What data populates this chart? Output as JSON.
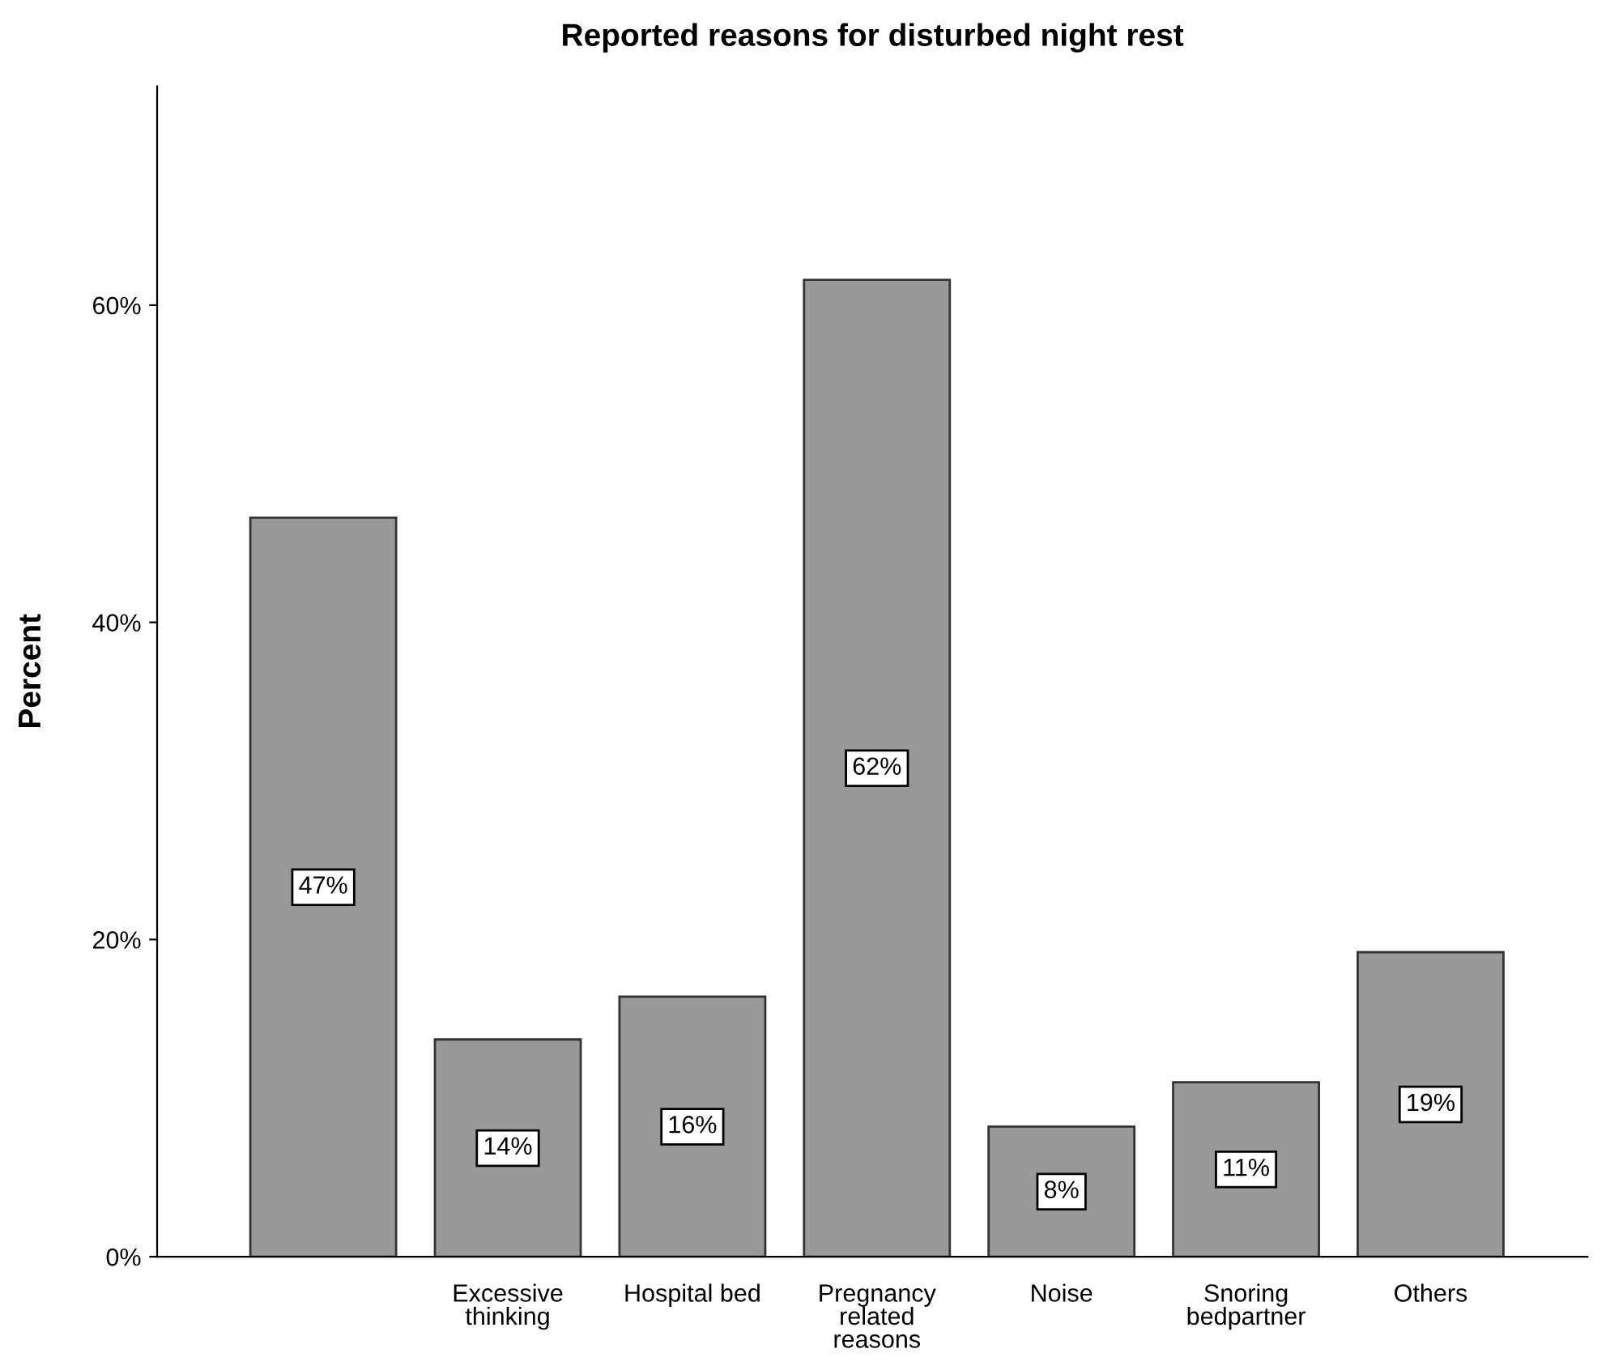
{
  "chart_data": {
    "type": "bar",
    "title": "Reported reasons for disturbed night rest",
    "ylabel": "Percent",
    "categories": [
      null,
      "Excessive\nthinking",
      "Hospital bed",
      "Pregnancy\nrelated\nreasons",
      "Noise",
      "Snoring\nbedpartner",
      "Others"
    ],
    "values": [
      46.6,
      13.7,
      16.4,
      61.6,
      8.2,
      11.0,
      19.2
    ],
    "value_labels": [
      "47%",
      "14%",
      "16%",
      "62%",
      "8%",
      "11%",
      "19%"
    ],
    "color": "#999999",
    "ylim": [
      0,
      73.8
    ],
    "yticks": [
      {
        "value": 0,
        "label": "0%"
      },
      {
        "value": 20,
        "label": "20%"
      },
      {
        "value": 40,
        "label": "40%"
      },
      {
        "value": 60,
        "label": "60%"
      }
    ],
    "grid": false
  }
}
